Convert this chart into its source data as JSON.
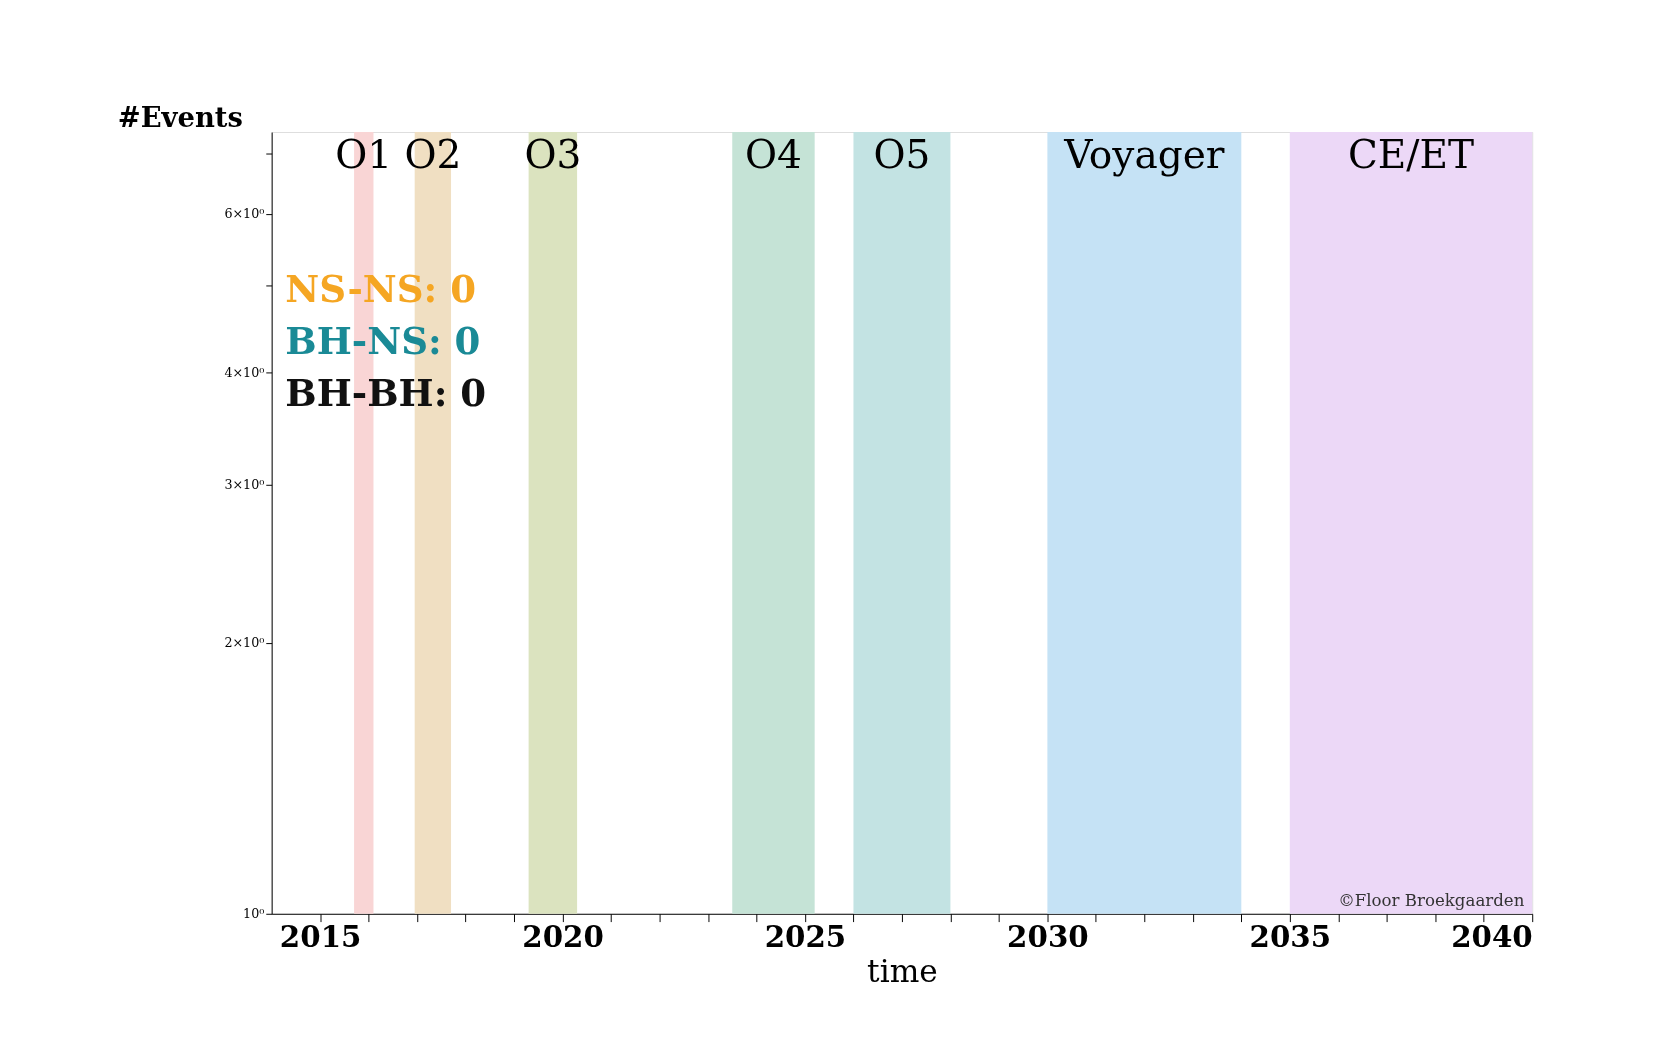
{
  "chart_data": {
    "type": "line",
    "xlabel": "time",
    "ylabel": "#Events",
    "log": "y",
    "grid": false,
    "xlim": [
      2014,
      2040
    ],
    "ylim": [
      1,
      7.4
    ],
    "xticks": [
      2015,
      {
        "value": 2016,
        "label": null
      },
      {
        "value": 2017,
        "label": null
      },
      {
        "value": 2018,
        "label": null
      },
      {
        "value": 2019,
        "label": null
      },
      2020,
      {
        "value": 2021,
        "label": null
      },
      {
        "value": 2022,
        "label": null
      },
      {
        "value": 2023,
        "label": null
      },
      {
        "value": 2024,
        "label": null
      },
      2025,
      {
        "value": 2026,
        "label": null
      },
      {
        "value": 2027,
        "label": null
      },
      {
        "value": 2028,
        "label": null
      },
      {
        "value": 2029,
        "label": null
      },
      2030,
      {
        "value": 2031,
        "label": null
      },
      {
        "value": 2032,
        "label": null
      },
      {
        "value": 2033,
        "label": null
      },
      {
        "value": 2034,
        "label": null
      },
      2035,
      {
        "value": 2036,
        "label": null
      },
      {
        "value": 2037,
        "label": null
      },
      {
        "value": 2038,
        "label": null
      },
      {
        "value": 2039,
        "label": null
      },
      2040
    ],
    "yticks": [
      {
        "value": 1,
        "label": "10⁰"
      },
      {
        "value": 2,
        "label": "2×10⁰"
      },
      {
        "value": 3,
        "label": "3×10⁰"
      },
      {
        "value": 4,
        "label": "4×10⁰"
      },
      {
        "value": 5,
        "label": null
      },
      {
        "value": 6,
        "label": "6×10⁰"
      },
      {
        "value": 7,
        "label": null
      }
    ],
    "bands": [
      {
        "axis": "x",
        "from": 2015.7,
        "to": 2016.1,
        "label": "O1",
        "color": "#f9d5d5"
      },
      {
        "axis": "x",
        "from": 2016.95,
        "to": 2017.7,
        "label": "O2",
        "color": "#f0dfc2"
      },
      {
        "axis": "x",
        "from": 2019.3,
        "to": 2020.3,
        "label": "O3",
        "color": "#dbe3bf"
      },
      {
        "axis": "x",
        "from": 2023.5,
        "to": 2025.2,
        "label": "O4",
        "color": "#c5e3d6"
      },
      {
        "axis": "x",
        "from": 2026.0,
        "to": 2028.0,
        "label": "O5",
        "color": "#c3e3e3"
      },
      {
        "axis": "x",
        "from": 2030.0,
        "to": 2034.0,
        "label": "Voyager",
        "color": "#c5e2f5"
      },
      {
        "axis": "x",
        "from": 2035.0,
        "to": 2040.0,
        "label": "CE/ET",
        "color": "#ecd8f7"
      }
    ],
    "annotations": [
      "NS-NS: 0",
      "BH-NS: 0",
      "BH-BH: 0",
      "©Floor Broekgaarden"
    ]
  }
}
